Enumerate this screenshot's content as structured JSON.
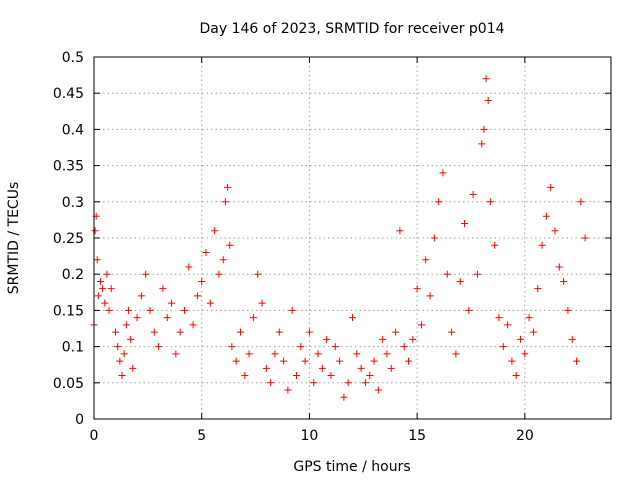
{
  "chart_data": {
    "type": "scatter",
    "title": "Day 146 of 2023, SRMTID for receiver p014",
    "xlabel": "GPS time / hours",
    "ylabel": "SRMTID / TECUs",
    "xlim": [
      0,
      24
    ],
    "ylim": [
      0,
      0.5
    ],
    "xticks": [
      0,
      5,
      10,
      15,
      20
    ],
    "xtick_labels": [
      "0",
      "5",
      "10",
      "15",
      "20"
    ],
    "yticks": [
      0,
      0.05,
      0.1,
      0.15,
      0.2,
      0.25,
      0.3,
      0.35,
      0.4,
      0.45,
      0.5
    ],
    "ytick_labels": [
      "0",
      "0.05",
      "0.1",
      "0.15",
      "0.2",
      "0.25",
      "0.3",
      "0.35",
      "0.4",
      "0.45",
      "0.5"
    ],
    "grid": true,
    "marker": "+",
    "color": "#ff0000",
    "x_range_hours": [
      0,
      22.8
    ],
    "series": [
      {
        "name": "SRMTID",
        "points": [
          [
            0.0,
            0.13
          ],
          [
            0.05,
            0.26
          ],
          [
            0.1,
            0.28
          ],
          [
            0.15,
            0.22
          ],
          [
            0.2,
            0.17
          ],
          [
            0.3,
            0.19
          ],
          [
            0.4,
            0.18
          ],
          [
            0.5,
            0.16
          ],
          [
            0.6,
            0.2
          ],
          [
            0.7,
            0.15
          ],
          [
            0.8,
            0.18
          ],
          [
            1.0,
            0.12
          ],
          [
            1.1,
            0.1
          ],
          [
            1.2,
            0.08
          ],
          [
            1.3,
            0.06
          ],
          [
            1.4,
            0.09
          ],
          [
            1.5,
            0.13
          ],
          [
            1.6,
            0.15
          ],
          [
            1.7,
            0.11
          ],
          [
            1.8,
            0.07
          ],
          [
            2.0,
            0.14
          ],
          [
            2.2,
            0.17
          ],
          [
            2.4,
            0.2
          ],
          [
            2.6,
            0.15
          ],
          [
            2.8,
            0.12
          ],
          [
            3.0,
            0.1
          ],
          [
            3.2,
            0.18
          ],
          [
            3.4,
            0.14
          ],
          [
            3.6,
            0.16
          ],
          [
            3.8,
            0.09
          ],
          [
            4.0,
            0.12
          ],
          [
            4.2,
            0.15
          ],
          [
            4.4,
            0.21
          ],
          [
            4.6,
            0.13
          ],
          [
            4.8,
            0.17
          ],
          [
            5.0,
            0.19
          ],
          [
            5.2,
            0.23
          ],
          [
            5.4,
            0.16
          ],
          [
            5.6,
            0.26
          ],
          [
            5.8,
            0.2
          ],
          [
            6.0,
            0.22
          ],
          [
            6.1,
            0.3
          ],
          [
            6.2,
            0.32
          ],
          [
            6.3,
            0.24
          ],
          [
            6.4,
            0.1
          ],
          [
            6.6,
            0.08
          ],
          [
            6.8,
            0.12
          ],
          [
            7.0,
            0.06
          ],
          [
            7.2,
            0.09
          ],
          [
            7.4,
            0.14
          ],
          [
            7.6,
            0.2
          ],
          [
            7.8,
            0.16
          ],
          [
            8.0,
            0.07
          ],
          [
            8.2,
            0.05
          ],
          [
            8.4,
            0.09
          ],
          [
            8.6,
            0.12
          ],
          [
            8.8,
            0.08
          ],
          [
            9.0,
            0.04
          ],
          [
            9.2,
            0.15
          ],
          [
            9.4,
            0.06
          ],
          [
            9.6,
            0.1
          ],
          [
            9.8,
            0.08
          ],
          [
            10.0,
            0.12
          ],
          [
            10.2,
            0.05
          ],
          [
            10.4,
            0.09
          ],
          [
            10.6,
            0.07
          ],
          [
            10.8,
            0.11
          ],
          [
            11.0,
            0.06
          ],
          [
            11.2,
            0.1
          ],
          [
            11.4,
            0.08
          ],
          [
            11.6,
            0.03
          ],
          [
            11.8,
            0.05
          ],
          [
            12.0,
            0.14
          ],
          [
            12.2,
            0.09
          ],
          [
            12.4,
            0.07
          ],
          [
            12.6,
            0.05
          ],
          [
            12.8,
            0.06
          ],
          [
            13.0,
            0.08
          ],
          [
            13.2,
            0.04
          ],
          [
            13.4,
            0.11
          ],
          [
            13.6,
            0.09
          ],
          [
            13.8,
            0.07
          ],
          [
            14.0,
            0.12
          ],
          [
            14.2,
            0.26
          ],
          [
            14.4,
            0.1
          ],
          [
            14.6,
            0.08
          ],
          [
            14.8,
            0.11
          ],
          [
            15.0,
            0.18
          ],
          [
            15.2,
            0.13
          ],
          [
            15.4,
            0.22
          ],
          [
            15.6,
            0.17
          ],
          [
            15.8,
            0.25
          ],
          [
            16.0,
            0.3
          ],
          [
            16.2,
            0.34
          ],
          [
            16.4,
            0.2
          ],
          [
            16.6,
            0.12
          ],
          [
            16.8,
            0.09
          ],
          [
            17.0,
            0.19
          ],
          [
            17.2,
            0.27
          ],
          [
            17.4,
            0.15
          ],
          [
            17.6,
            0.31
          ],
          [
            17.8,
            0.2
          ],
          [
            18.0,
            0.38
          ],
          [
            18.1,
            0.4
          ],
          [
            18.2,
            0.47
          ],
          [
            18.3,
            0.44
          ],
          [
            18.4,
            0.3
          ],
          [
            18.6,
            0.24
          ],
          [
            18.8,
            0.14
          ],
          [
            19.0,
            0.1
          ],
          [
            19.2,
            0.13
          ],
          [
            19.4,
            0.08
          ],
          [
            19.6,
            0.06
          ],
          [
            19.8,
            0.11
          ],
          [
            20.0,
            0.09
          ],
          [
            20.2,
            0.14
          ],
          [
            20.4,
            0.12
          ],
          [
            20.6,
            0.18
          ],
          [
            20.8,
            0.24
          ],
          [
            21.0,
            0.28
          ],
          [
            21.2,
            0.32
          ],
          [
            21.4,
            0.26
          ],
          [
            21.6,
            0.21
          ],
          [
            21.8,
            0.19
          ],
          [
            22.0,
            0.15
          ],
          [
            22.2,
            0.11
          ],
          [
            22.4,
            0.08
          ],
          [
            22.6,
            0.3
          ],
          [
            22.8,
            0.25
          ]
        ]
      }
    ]
  }
}
